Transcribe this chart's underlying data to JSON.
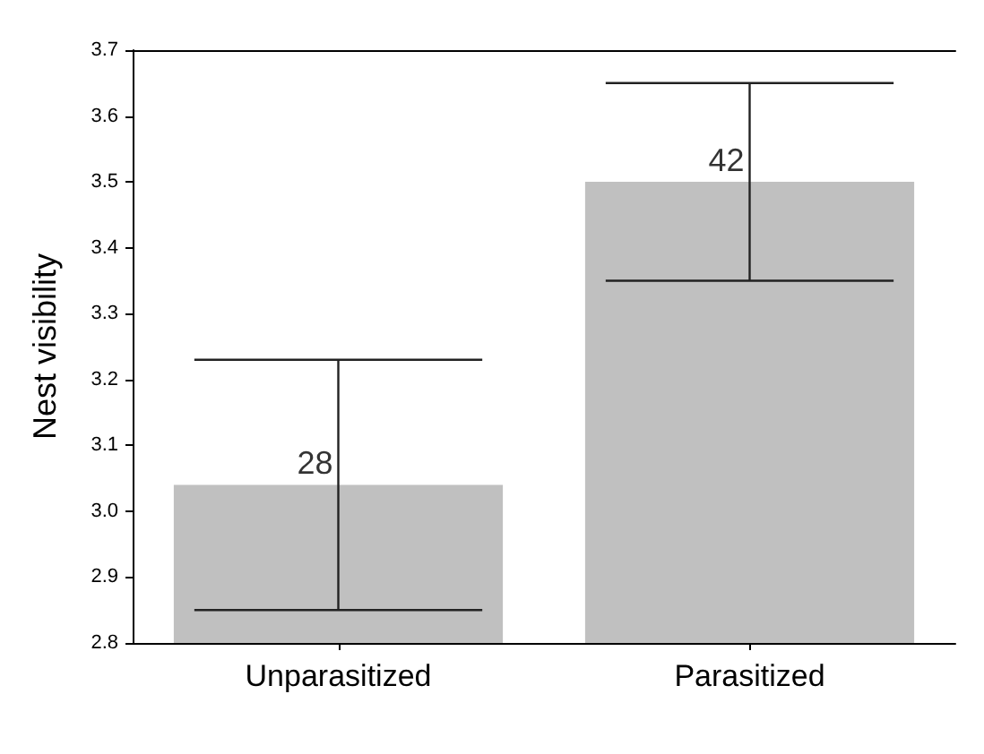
{
  "chart_data": {
    "type": "bar",
    "ylabel": "Nest visibility",
    "categories": [
      "Unparasitized",
      "Parasitized"
    ],
    "values": [
      3.04,
      3.5
    ],
    "errors": [
      0.19,
      0.15
    ],
    "annotations": [
      {
        "text": "28",
        "x": "Unparasitized",
        "y": 3.04
      },
      {
        "text": "42",
        "x": "Parasitized",
        "y": 3.5
      }
    ],
    "color": "#c0c0c0",
    "ylim": [
      2.8,
      3.7
    ],
    "yticks": [
      2.8,
      2.9,
      {
        "value": 3.0,
        "label": "3.0"
      },
      3.1,
      3.2,
      3.3,
      3.4,
      3.5,
      3.6,
      3.7
    ],
    "grid": false
  }
}
